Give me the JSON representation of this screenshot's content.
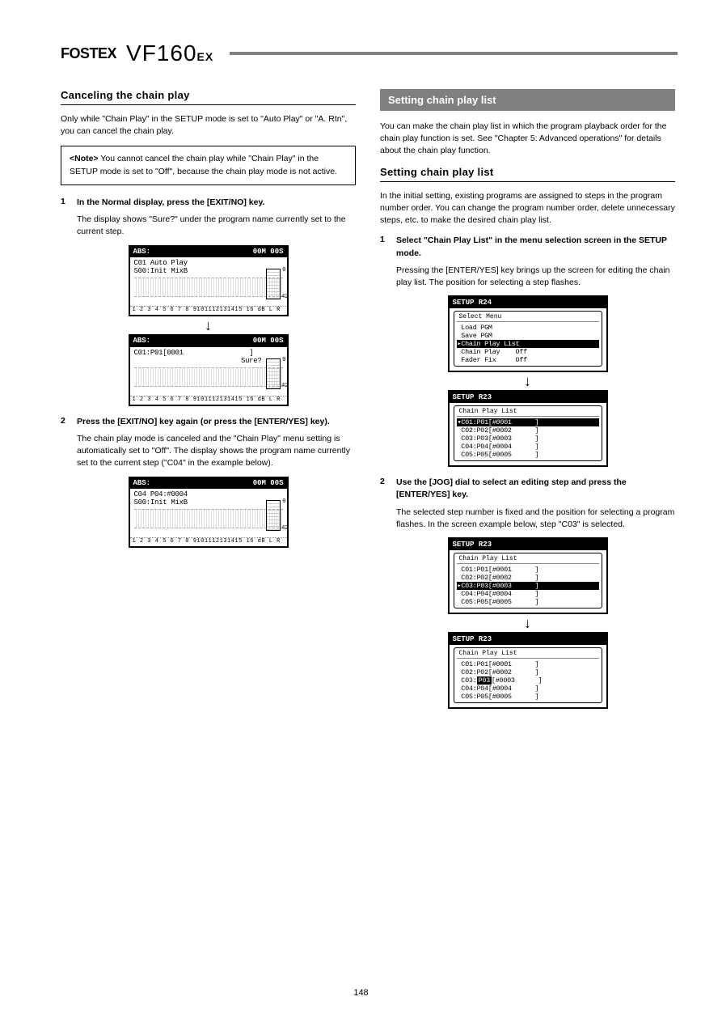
{
  "header": {
    "brand": "FOSTEX",
    "model": "VF160",
    "suffix": "EX"
  },
  "left": {
    "title": "Canceling the chain play",
    "intro": "Only while \"Chain Play\" in the SETUP mode is set to \"Auto Play\" or \"A. Rtn\", you can cancel the chain play.",
    "note_label": "<Note>",
    "note_text": "You cannot cancel the chain play while \"Chain Play\" in the SETUP mode is set to \"Off\", because the chain play mode is not active.",
    "step1_num": "1",
    "step1_text": "In the Normal display, press the [EXIT/NO] key.",
    "step1_sub": "The display shows \"Sure?\" under the program name currently set to the current step.",
    "lcd_abs": "ABS:",
    "lcd_time": "00M 00S",
    "lcd_a_line1": "C01 Auto Play",
    "lcd_a_line2": "S00:Init MixB",
    "lcd_b_line1": "C01:P01[0001",
    "lcd_b_bracket": "]",
    "lcd_b_sure": "Sure?",
    "lcd_footer": "1 2 3 4 5 6 7 8 9101112131415 16 dB L R",
    "step2_num": "2",
    "step2_text": "Press the [EXIT/NO] key again (or press the [ENTER/YES] key).",
    "step2_sub": "The chain play mode is canceled and the \"Chain Play\" menu setting is automatically set to \"Off\". The display shows the program name currently set to the current step (\"C04\" in the example below).",
    "lcd_c_line1": "C04 P04:#0004",
    "lcd_c_line2": "S00:Init MixB"
  },
  "right": {
    "gray_title": "Setting chain play list",
    "intro": "You can make the chain play list in which the program playback order for the chain play function is set. See \"Chapter 5: Advanced operations\" for details about the chain play function.",
    "setting_title": "Setting chain play list",
    "initial_para": "In the initial setting, existing programs are assigned to steps in the program number order. You can change the program number order, delete unnecessary steps, etc. to make the desired chain play list.",
    "step1_num": "1",
    "step1_text": "Select \"Chain Play List\" in the menu selection screen in the SETUP mode.",
    "step1_sub": "Pressing the [ENTER/YES] key brings up the screen for editing the chain play list. The position for selecting a step flashes.",
    "setup_r24": "SETUP R24",
    "setup_r23": "SETUP R23",
    "menu_title": " Select Menu ",
    "menu_items": {
      "m1": " Load PGM",
      "m2": " Save PGM",
      "m3": "▸Chain Play List",
      "m4": " Chain Play    Off",
      "m5": " Fader Fix     Off"
    },
    "list_title": "Chain Play List",
    "list1": {
      "l1": "▾C01:P01[#0001      ]",
      "l2": " C02:P02[#0002      ]",
      "l3": " C03:P03[#0003      ]",
      "l4": " C04:P04[#0004      ]",
      "l5": " C05:P05[#0005      ]"
    },
    "step2_num": "2",
    "step2_text": "Use the [JOG] dial to select an editing step and press the [ENTER/YES] key.",
    "step2_sub": "The selected step number is fixed and the position for selecting a program flashes. In the screen example below, step \"C03\" is selected.",
    "list2": {
      "l1": " C01:P01[#0001      ]",
      "l2": " C02:P02[#0002      ]",
      "l3": "▸C03:P03[#0003      ]",
      "l4": " C04:P04[#0004      ]",
      "l5": " C05:P05[#0005      ]"
    },
    "list3_prefix": " C03:",
    "list3_pgm": "P03",
    "list3_rest": "[#0003      ]"
  },
  "page_number": "148"
}
